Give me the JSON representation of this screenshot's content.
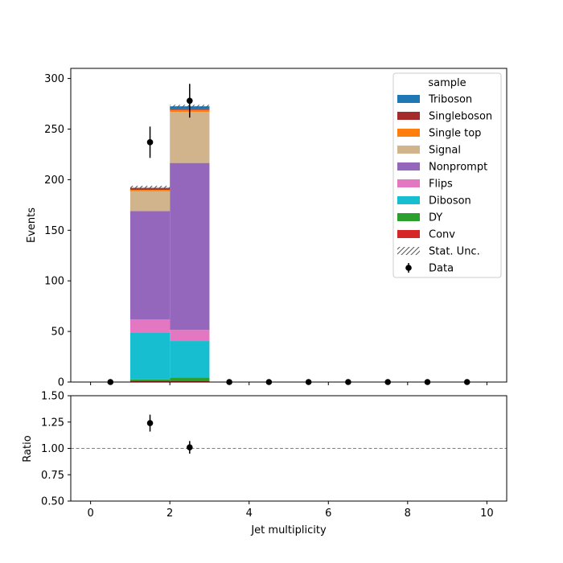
{
  "chart_data": [
    {
      "type": "bar",
      "stacked": true,
      "bins": [
        [
          0,
          1
        ],
        [
          1,
          2
        ],
        [
          2,
          3
        ],
        [
          3,
          4
        ],
        [
          4,
          5
        ],
        [
          5,
          6
        ],
        [
          6,
          7
        ],
        [
          7,
          8
        ],
        [
          8,
          9
        ],
        [
          9,
          10
        ]
      ],
      "ylabel": "Events",
      "xlim": [
        -0.5,
        10.5
      ],
      "ylim": [
        0,
        310
      ],
      "yticks": [
        0,
        50,
        100,
        150,
        200,
        250,
        300
      ],
      "legend_title": "sample",
      "legend_position": "top-right",
      "series": [
        {
          "name": "Conv",
          "color": "#d62728",
          "values": [
            0,
            1.5,
            1.5,
            0,
            0,
            0,
            0,
            0,
            0,
            0
          ]
        },
        {
          "name": "DY",
          "color": "#2ca02c",
          "values": [
            0,
            1,
            3,
            0,
            0,
            0,
            0,
            0,
            0,
            0
          ]
        },
        {
          "name": "Diboson",
          "color": "#17becf",
          "values": [
            0,
            46.5,
            36,
            0,
            0,
            0,
            0,
            0,
            0,
            0
          ]
        },
        {
          "name": "Flips",
          "color": "#e377c2",
          "values": [
            0,
            13,
            11,
            0,
            0,
            0,
            0,
            0,
            0,
            0
          ]
        },
        {
          "name": "Nonprompt",
          "color": "#9467bd",
          "values": [
            0,
            107,
            165,
            0,
            0,
            0,
            0,
            0,
            0,
            0
          ]
        },
        {
          "name": "Signal",
          "color": "#d2b48c",
          "values": [
            0,
            19.5,
            50.5,
            0,
            0,
            0,
            0,
            0,
            0,
            0
          ]
        },
        {
          "name": "Single top",
          "color": "#ff7f0e",
          "values": [
            0,
            1.5,
            2,
            0,
            0,
            0,
            0,
            0,
            0,
            0
          ]
        },
        {
          "name": "Singleboson",
          "color": "#a52a2a",
          "values": [
            0,
            1.5,
            0.5,
            0,
            0,
            0,
            0,
            0,
            0,
            0
          ]
        },
        {
          "name": "Triboson",
          "color": "#1f77b4",
          "values": [
            0,
            0.5,
            3,
            0,
            0,
            0,
            0,
            0,
            0,
            0
          ]
        }
      ],
      "stat_unc": {
        "name": "Stat. Unc.",
        "values": [
          0,
          4,
          3,
          0,
          0,
          0,
          0,
          0,
          0,
          0
        ]
      },
      "data_points": {
        "name": "Data",
        "x": [
          0.5,
          1.5,
          2.5,
          3.5,
          4.5,
          5.5,
          6.5,
          7.5,
          8.5,
          9.5
        ],
        "y": [
          0,
          237,
          278,
          0,
          0,
          0,
          0,
          0,
          0,
          0
        ],
        "yerr": [
          0,
          15.5,
          16.7,
          0,
          0,
          0,
          0,
          0,
          0,
          0
        ]
      }
    },
    {
      "type": "scatter",
      "xlabel": "Jet multiplicity",
      "ylabel": "Ratio",
      "xlim": [
        -0.5,
        10.5
      ],
      "ylim": [
        0.5,
        1.5
      ],
      "xticks": [
        0,
        2,
        4,
        6,
        8,
        10
      ],
      "yticks": [
        "0.50",
        "0.75",
        "1.00",
        "1.25",
        "1.50"
      ],
      "reference_line": 1.0,
      "x": [
        1.5,
        2.5
      ],
      "y": [
        1.24,
        1.01
      ],
      "yerr": [
        0.08,
        0.06
      ]
    }
  ]
}
